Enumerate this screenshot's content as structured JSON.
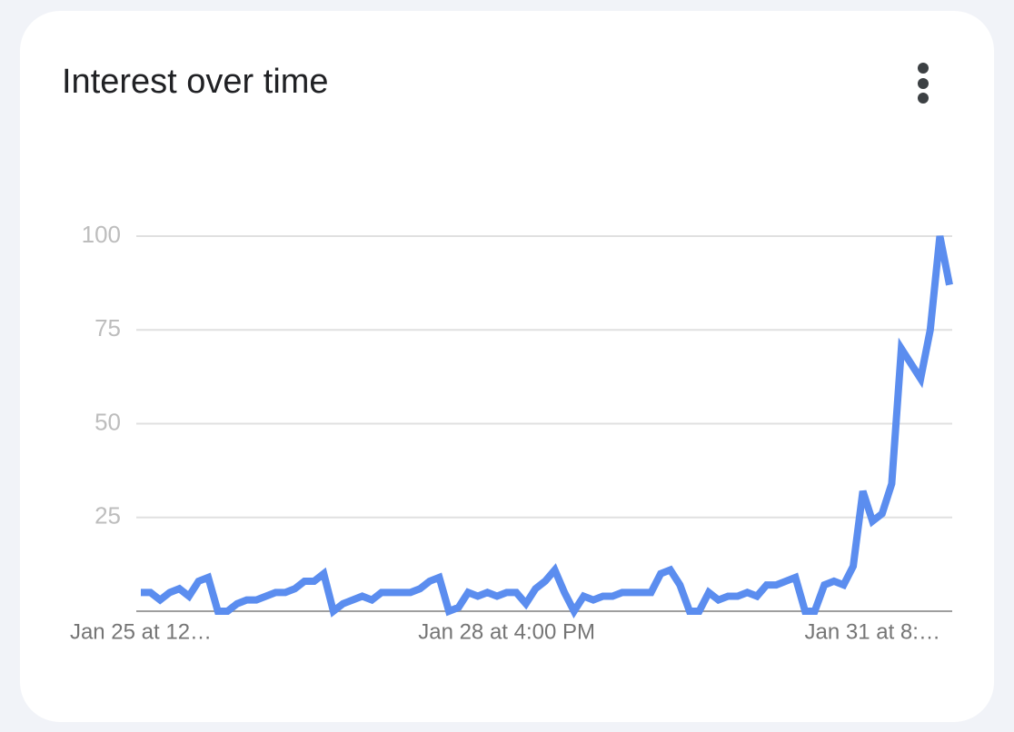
{
  "chart_data": {
    "type": "line",
    "title": "Interest over time",
    "categories": [
      "Jan 25 at 12…",
      null,
      null,
      null,
      null,
      null,
      null,
      null,
      null,
      null,
      null,
      null,
      null,
      null,
      null,
      null,
      null,
      null,
      null,
      null,
      null,
      null,
      null,
      null,
      null,
      null,
      null,
      null,
      null,
      null,
      null,
      null,
      null,
      null,
      null,
      null,
      null,
      null,
      "Jan 28 at 4:00 PM",
      null,
      null,
      null,
      null,
      null,
      null,
      null,
      null,
      null,
      null,
      null,
      null,
      null,
      null,
      null,
      null,
      null,
      null,
      null,
      null,
      null,
      null,
      null,
      null,
      null,
      null,
      null,
      null,
      null,
      null,
      null,
      null,
      null,
      null,
      null,
      null,
      null,
      "Jan 31 at 8:…",
      null,
      null,
      null,
      null,
      null,
      null,
      null,
      null
    ],
    "series": [
      {
        "name": "Interest",
        "color": "#5b8def",
        "values": [
          5,
          5,
          3,
          5,
          6,
          4,
          8,
          9,
          0,
          0,
          2,
          3,
          3,
          4,
          5,
          5,
          6,
          8,
          8,
          10,
          0,
          2,
          3,
          4,
          3,
          5,
          5,
          5,
          5,
          6,
          8,
          9,
          0,
          1,
          5,
          4,
          5,
          4,
          5,
          5,
          2,
          6,
          8,
          11,
          5,
          0,
          4,
          3,
          4,
          4,
          5,
          5,
          5,
          5,
          10,
          11,
          7,
          0,
          0,
          5,
          3,
          4,
          4,
          5,
          4,
          7,
          7,
          8,
          9,
          0,
          0,
          7,
          8,
          7,
          12,
          32,
          24,
          26,
          34,
          70,
          66,
          62,
          75,
          100,
          87
        ]
      }
    ],
    "ylim": [
      0,
      100
    ],
    "yticks": [
      25,
      50,
      75,
      100
    ],
    "grid": true
  }
}
